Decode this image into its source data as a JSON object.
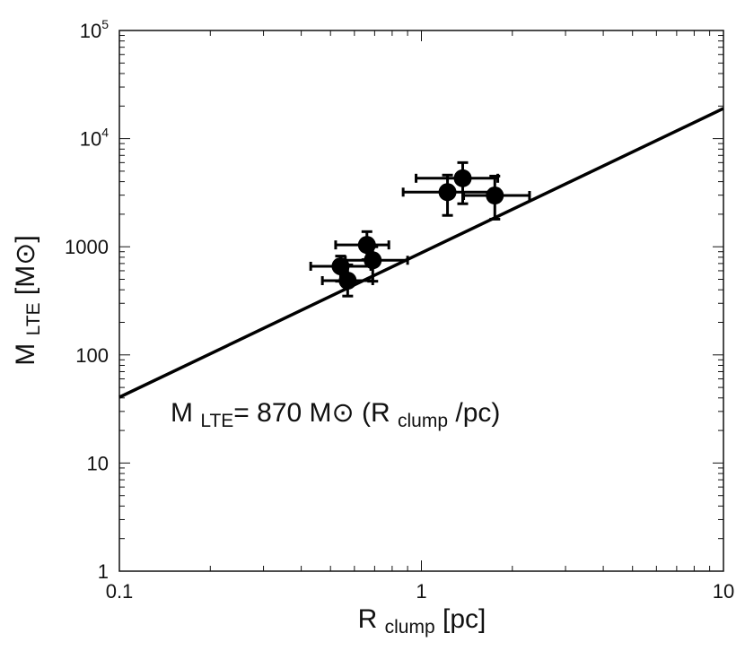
{
  "chart_data": {
    "type": "scatter",
    "xlabel": [
      "R ",
      "clump",
      " [pc]"
    ],
    "ylabel": [
      "M ",
      "LTE",
      " [M⊙]"
    ],
    "annotation": [
      "M ",
      "LTE",
      "= 870 M⊙ (R ",
      "clump",
      " /pc)"
    ],
    "xscale": "log",
    "yscale": "log",
    "xlim": [
      0.1,
      10
    ],
    "ylim": [
      1,
      100000
    ],
    "xticks": [
      0.1,
      1,
      10
    ],
    "yticks": [
      1,
      10,
      100,
      1000,
      {
        "value": 10000,
        "label": "10^4"
      },
      {
        "value": 100000,
        "label": "10^5"
      }
    ],
    "color": "#000000",
    "x": [
      0.54,
      0.57,
      0.66,
      0.69,
      1.22,
      1.37,
      1.75
    ],
    "values": [
      660,
      486,
      1040,
      750,
      3200,
      4300,
      2980
    ],
    "x_low": [
      0.43,
      0.47,
      0.52,
      0.56,
      0.87,
      0.96,
      1.38
    ],
    "x_high": [
      0.68,
      0.69,
      0.78,
      0.9,
      1.73,
      1.79,
      2.28
    ],
    "y_low": [
      480,
      350,
      760,
      480,
      1950,
      2500,
      1800
    ],
    "y_high": [
      820,
      680,
      1380,
      1000,
      4600,
      6000,
      4500
    ],
    "fit": {
      "x": [
        0.1,
        10
      ],
      "values": [
        40.6,
        19000
      ]
    }
  }
}
